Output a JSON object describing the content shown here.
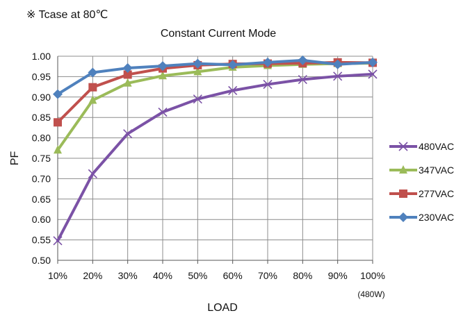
{
  "chart_data": {
    "type": "line",
    "note": "※ Tcase at 80℃",
    "title": "Constant Current Mode",
    "xlabel": "LOAD",
    "ylabel": "PF",
    "x_sublabel": "(480W)",
    "categories": [
      "10%",
      "20%",
      "30%",
      "40%",
      "50%",
      "60%",
      "70%",
      "80%",
      "90%",
      "100%"
    ],
    "ylim": [
      0.5,
      1.0
    ],
    "yticks": [
      "0.50",
      "0.55",
      "0.60",
      "0.65",
      "0.70",
      "0.75",
      "0.80",
      "0.85",
      "0.90",
      "0.95",
      "1.00"
    ],
    "grid": true,
    "legend_position": "right",
    "series": [
      {
        "name": "480VAC",
        "color": "#7b52a6",
        "marker": "x",
        "values": [
          0.548,
          0.712,
          0.81,
          0.863,
          0.895,
          0.916,
          0.931,
          0.943,
          0.951,
          0.956
        ]
      },
      {
        "name": "347VAC",
        "color": "#9bbb59",
        "marker": "triangle",
        "values": [
          0.77,
          0.892,
          0.934,
          0.952,
          0.962,
          0.973,
          0.977,
          0.98,
          0.982,
          0.983
        ]
      },
      {
        "name": "277VAC",
        "color": "#c0504d",
        "marker": "square",
        "values": [
          0.838,
          0.924,
          0.955,
          0.97,
          0.978,
          0.981,
          0.982,
          0.983,
          0.985,
          0.984
        ]
      },
      {
        "name": "230VAC",
        "color": "#4f81bd",
        "marker": "diamond",
        "values": [
          0.907,
          0.96,
          0.971,
          0.976,
          0.982,
          0.979,
          0.985,
          0.99,
          0.98,
          0.985
        ]
      }
    ]
  }
}
